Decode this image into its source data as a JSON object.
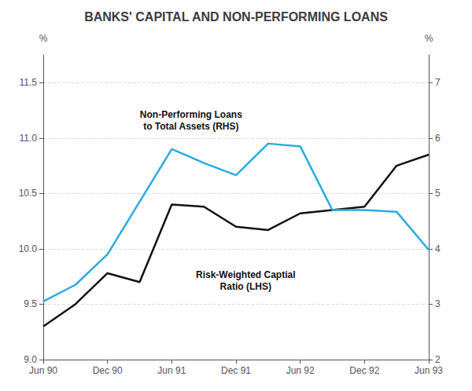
{
  "chart_data": {
    "type": "line",
    "title": "BANKS' CAPITAL AND NON-PERFORMING LOANS",
    "categories": [
      "Jun 90",
      null,
      "Dec 90",
      null,
      "Jun 91",
      null,
      "Dec 91",
      null,
      "Jun 92",
      null,
      "Dec 92",
      null,
      "Jun 93"
    ],
    "ylabel": "%",
    "y2label": "%",
    "series": [
      {
        "name": "Risk-Weighted Captial\nRatio (LHS)",
        "color": "#111111",
        "values": [
          9.3,
          9.5,
          9.78,
          9.7,
          10.4,
          10.38,
          10.2,
          10.17,
          10.32,
          10.35,
          10.38,
          10.75,
          10.85
        ]
      },
      {
        "name": "Non-Performing Loans\nto Total Assets (RHS)",
        "color": "#29ABE2",
        "axis": "y2",
        "values": [
          3.05,
          3.35,
          3.9,
          4.85,
          5.8,
          5.55,
          5.33,
          5.9,
          5.85,
          4.7,
          4.7,
          4.67,
          3.98
        ]
      }
    ],
    "ylim": [
      9.0,
      11.75
    ],
    "yticks": [
      {
        "value": 9.0,
        "label": "9.0"
      },
      9.5,
      {
        "value": 10.0,
        "label": "10.0"
      },
      10.5,
      {
        "value": 11.0,
        "label": "11.0"
      },
      11.5
    ],
    "y2lim": [
      2,
      7.5
    ],
    "y2ticks": [
      2,
      3,
      4,
      5,
      6,
      7
    ],
    "grid": true
  }
}
